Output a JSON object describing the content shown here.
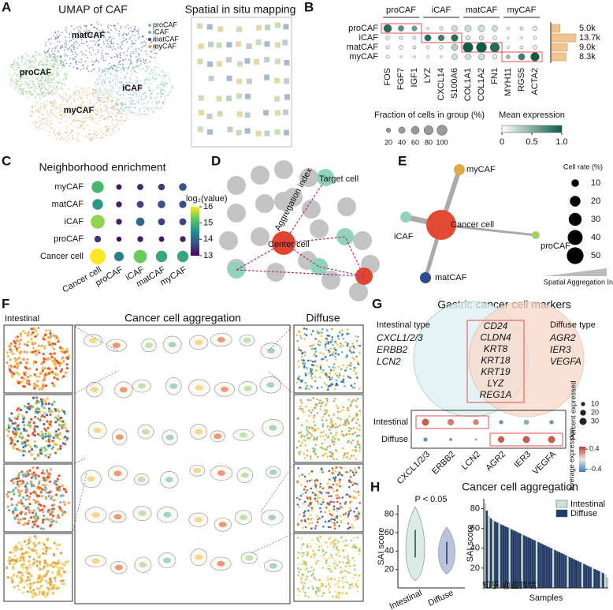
{
  "panel_labels": [
    "A",
    "B",
    "C",
    "D",
    "E",
    "F",
    "G",
    "H"
  ],
  "watermark": "知乎 @益找信",
  "umap": {
    "title": "UMAP of CAF",
    "legend": [
      "proCAF",
      "iCAF",
      "matCAF",
      "myCAF"
    ],
    "clusters": [
      "matCAF",
      "proCAF",
      "iCAF",
      "myCAF"
    ],
    "spatial_title": "Spatial in situ mapping"
  },
  "diagram_d": {
    "labels": [
      "Target cell",
      "Aggregation index",
      "Center cell"
    ]
  },
  "diagram_e": {
    "nodes": [
      "myCAF",
      "Cancer cell",
      "iCAF",
      "proCAF",
      "matCAF"
    ],
    "legend_title": "Cell rate (%)",
    "legend_values": [
      10,
      20,
      30,
      40,
      50
    ],
    "axis_label": "Spatial Aggregation Index"
  },
  "panel_f": {
    "left": "Intestinal",
    "center": "Cancer cell aggregation",
    "right": "Diffuse"
  },
  "panel_g": {
    "title": "Gastric cancer cell markers",
    "left_title": "Intestinal type",
    "left_genes": [
      "CXCL1/2/3",
      "ERBB2",
      "LCN2"
    ],
    "right_title": "Diffuse type",
    "right_genes": [
      "AGR2",
      "IER3",
      "VEGFA"
    ],
    "shared": [
      "CD24",
      "CLDN4",
      "KRT8",
      "KRT18",
      "KRT19",
      "LYZ",
      "REG1A"
    ]
  },
  "chart_data": [
    {
      "type": "dotplot",
      "rows": [
        "proCAF",
        "iCAF",
        "matCAF",
        "myCAF"
      ],
      "column_groups": [
        "proCAF",
        "iCAF",
        "matCAF",
        "myCAF"
      ],
      "columns": [
        "FOS",
        "FGF7",
        "IGF1",
        "LYZ",
        "CXCL14",
        "S100A6",
        "COL1A1",
        "COL1A2",
        "FN1",
        "MYH11",
        "RGS5",
        "ACTA2"
      ],
      "size": [
        [
          60,
          30,
          25,
          5,
          10,
          30,
          40,
          40,
          30,
          5,
          10,
          20
        ],
        [
          15,
          10,
          10,
          40,
          35,
          45,
          20,
          20,
          15,
          5,
          5,
          10
        ],
        [
          10,
          15,
          10,
          10,
          15,
          40,
          95,
          100,
          85,
          5,
          10,
          15
        ],
        [
          10,
          5,
          5,
          5,
          5,
          30,
          30,
          35,
          20,
          15,
          40,
          70
        ]
      ],
      "color": [
        [
          0.9,
          0.7,
          0.6,
          0.05,
          0.1,
          0.2,
          0.2,
          0.2,
          0.2,
          0.05,
          0.1,
          0.1
        ],
        [
          0.1,
          0.1,
          0.1,
          0.9,
          0.8,
          0.9,
          0.15,
          0.15,
          0.1,
          0,
          0.05,
          0.05
        ],
        [
          0.05,
          0.1,
          0.1,
          0.05,
          0.1,
          0.3,
          1.0,
          1.0,
          0.9,
          0,
          0.05,
          0.1
        ],
        [
          0.05,
          0.05,
          0.05,
          0.02,
          0.02,
          0.2,
          0.2,
          0.2,
          0.1,
          0.4,
          0.8,
          1.0
        ]
      ],
      "colormap": [
        "#ffffff",
        "#0b5d46"
      ],
      "counts": {
        "values": [
          5000,
          13700,
          9000,
          8300
        ],
        "value_labels": [
          "5.0k",
          "13.7k",
          "9.0k",
          "8.3k"
        ],
        "color": "#f2c48f"
      },
      "size_legend": {
        "title": "Fraction of cells in group (%)",
        "values": [
          20,
          40,
          60,
          80,
          100
        ]
      },
      "color_legend": {
        "title": "Mean expression",
        "lim": [
          0,
          1
        ],
        "ticks": [
          0,
          0.5,
          {
            "value": 1,
            "label": "1.0"
          }
        ]
      }
    },
    {
      "type": "dotmatrix",
      "title": "Neighborhood enrichment",
      "rows": [
        "myCAF",
        "matCAF",
        "iCAF",
        "proCAF",
        "Cancer cell"
      ],
      "columns": [
        "Cancer cell",
        "proCAF",
        "iCAF",
        "matCAF",
        "myCAF"
      ],
      "values": [
        [
          15.0,
          13.2,
          13.4,
          13.5,
          13.8
        ],
        [
          14.6,
          13.3,
          13.6,
          13.8,
          13.7
        ],
        [
          15.5,
          13.3,
          14.0,
          13.6,
          13.6
        ],
        [
          13.5,
          13.1,
          13.3,
          13.2,
          13.3
        ],
        [
          16.0,
          14.3,
          15.3,
          14.8,
          14.8
        ]
      ],
      "colorbar_title": "log₂(value)",
      "clim": [
        13,
        16
      ],
      "cticks": [
        13,
        14,
        15,
        16
      ],
      "colormap": [
        "#440154",
        "#3b528b",
        "#21918c",
        "#5ec962",
        "#fde725"
      ]
    },
    {
      "type": "dotplot",
      "rows": [
        "Intestinal",
        "Diffuse"
      ],
      "columns": [
        "CXCL1/2/3",
        "ERBB2",
        "LCN2",
        "AGR2",
        "IER3",
        "VEGFA"
      ],
      "size": [
        [
          30,
          25,
          20,
          10,
          15,
          10
        ],
        [
          10,
          5,
          3,
          25,
          30,
          30
        ]
      ],
      "color": [
        [
          0.4,
          0.3,
          0.3,
          -0.4,
          -0.3,
          -0.4
        ],
        [
          -0.4,
          -0.4,
          -0.3,
          0.4,
          0.4,
          0.4
        ]
      ],
      "colormap": [
        "#3a7fb8",
        "#e8e8e8",
        "#c0392b"
      ],
      "size_legend": {
        "title": "Percent expressed",
        "values": [
          10,
          20,
          30
        ]
      },
      "color_legend": {
        "title": "Average expression",
        "lim": [
          -0.5,
          0.5
        ],
        "ticks": [
          0.4,
          -0.4
        ]
      }
    },
    {
      "type": "violin",
      "ylabel": "SAI score",
      "categories": [
        "Intestinal",
        "Diffuse"
      ],
      "annotation": "P < 0.05",
      "ylim": [
        0,
        90
      ],
      "yticks": [
        20,
        40,
        60,
        80
      ],
      "ranges": [
        [
          8,
          88
        ],
        [
          15,
          66
        ]
      ],
      "lines": [
        [
          33,
          63
        ],
        [
          26,
          50
        ]
      ],
      "colors": [
        "#d9ece6",
        "#b9c4e0"
      ]
    },
    {
      "type": "bar",
      "title": "Cancer cell aggregation",
      "ylabel": "SAI score",
      "xlabel": "Samples",
      "ylim": [
        0,
        90
      ],
      "yticks": [
        20,
        40,
        60,
        80
      ],
      "legend": "upper right",
      "series": [
        {
          "name": "Intestinal",
          "color": "#c9e3d6",
          "values": [
            85,
            null,
            72,
            null,
            68,
            null,
            null,
            65,
            null,
            null,
            null,
            null,
            60,
            null,
            null,
            null,
            null,
            null,
            54,
            null,
            null,
            null,
            null,
            null,
            null,
            47,
            null,
            null,
            null,
            null,
            null,
            null,
            null,
            39,
            null,
            null,
            null,
            null,
            null,
            null,
            32,
            null,
            null,
            null,
            null,
            null,
            null,
            25,
            null,
            null,
            null,
            null,
            20,
            null,
            null,
            null,
            16,
            null,
            13,
            10
          ]
        },
        {
          "name": "Diffuse",
          "color": "#1e3a6e",
          "values": [
            null,
            78,
            null,
            70,
            null,
            67,
            66,
            null,
            64,
            63,
            62,
            61,
            null,
            59,
            58,
            57,
            56,
            55,
            null,
            53,
            52,
            51,
            50,
            49,
            48,
            null,
            46,
            45,
            44,
            43,
            42,
            41,
            40,
            null,
            38,
            37,
            36,
            35,
            34,
            33,
            null,
            31,
            30,
            29,
            28,
            27,
            26,
            null,
            24,
            23,
            22,
            21,
            null,
            19,
            18,
            17,
            null,
            15,
            null,
            null
          ]
        }
      ]
    }
  ]
}
